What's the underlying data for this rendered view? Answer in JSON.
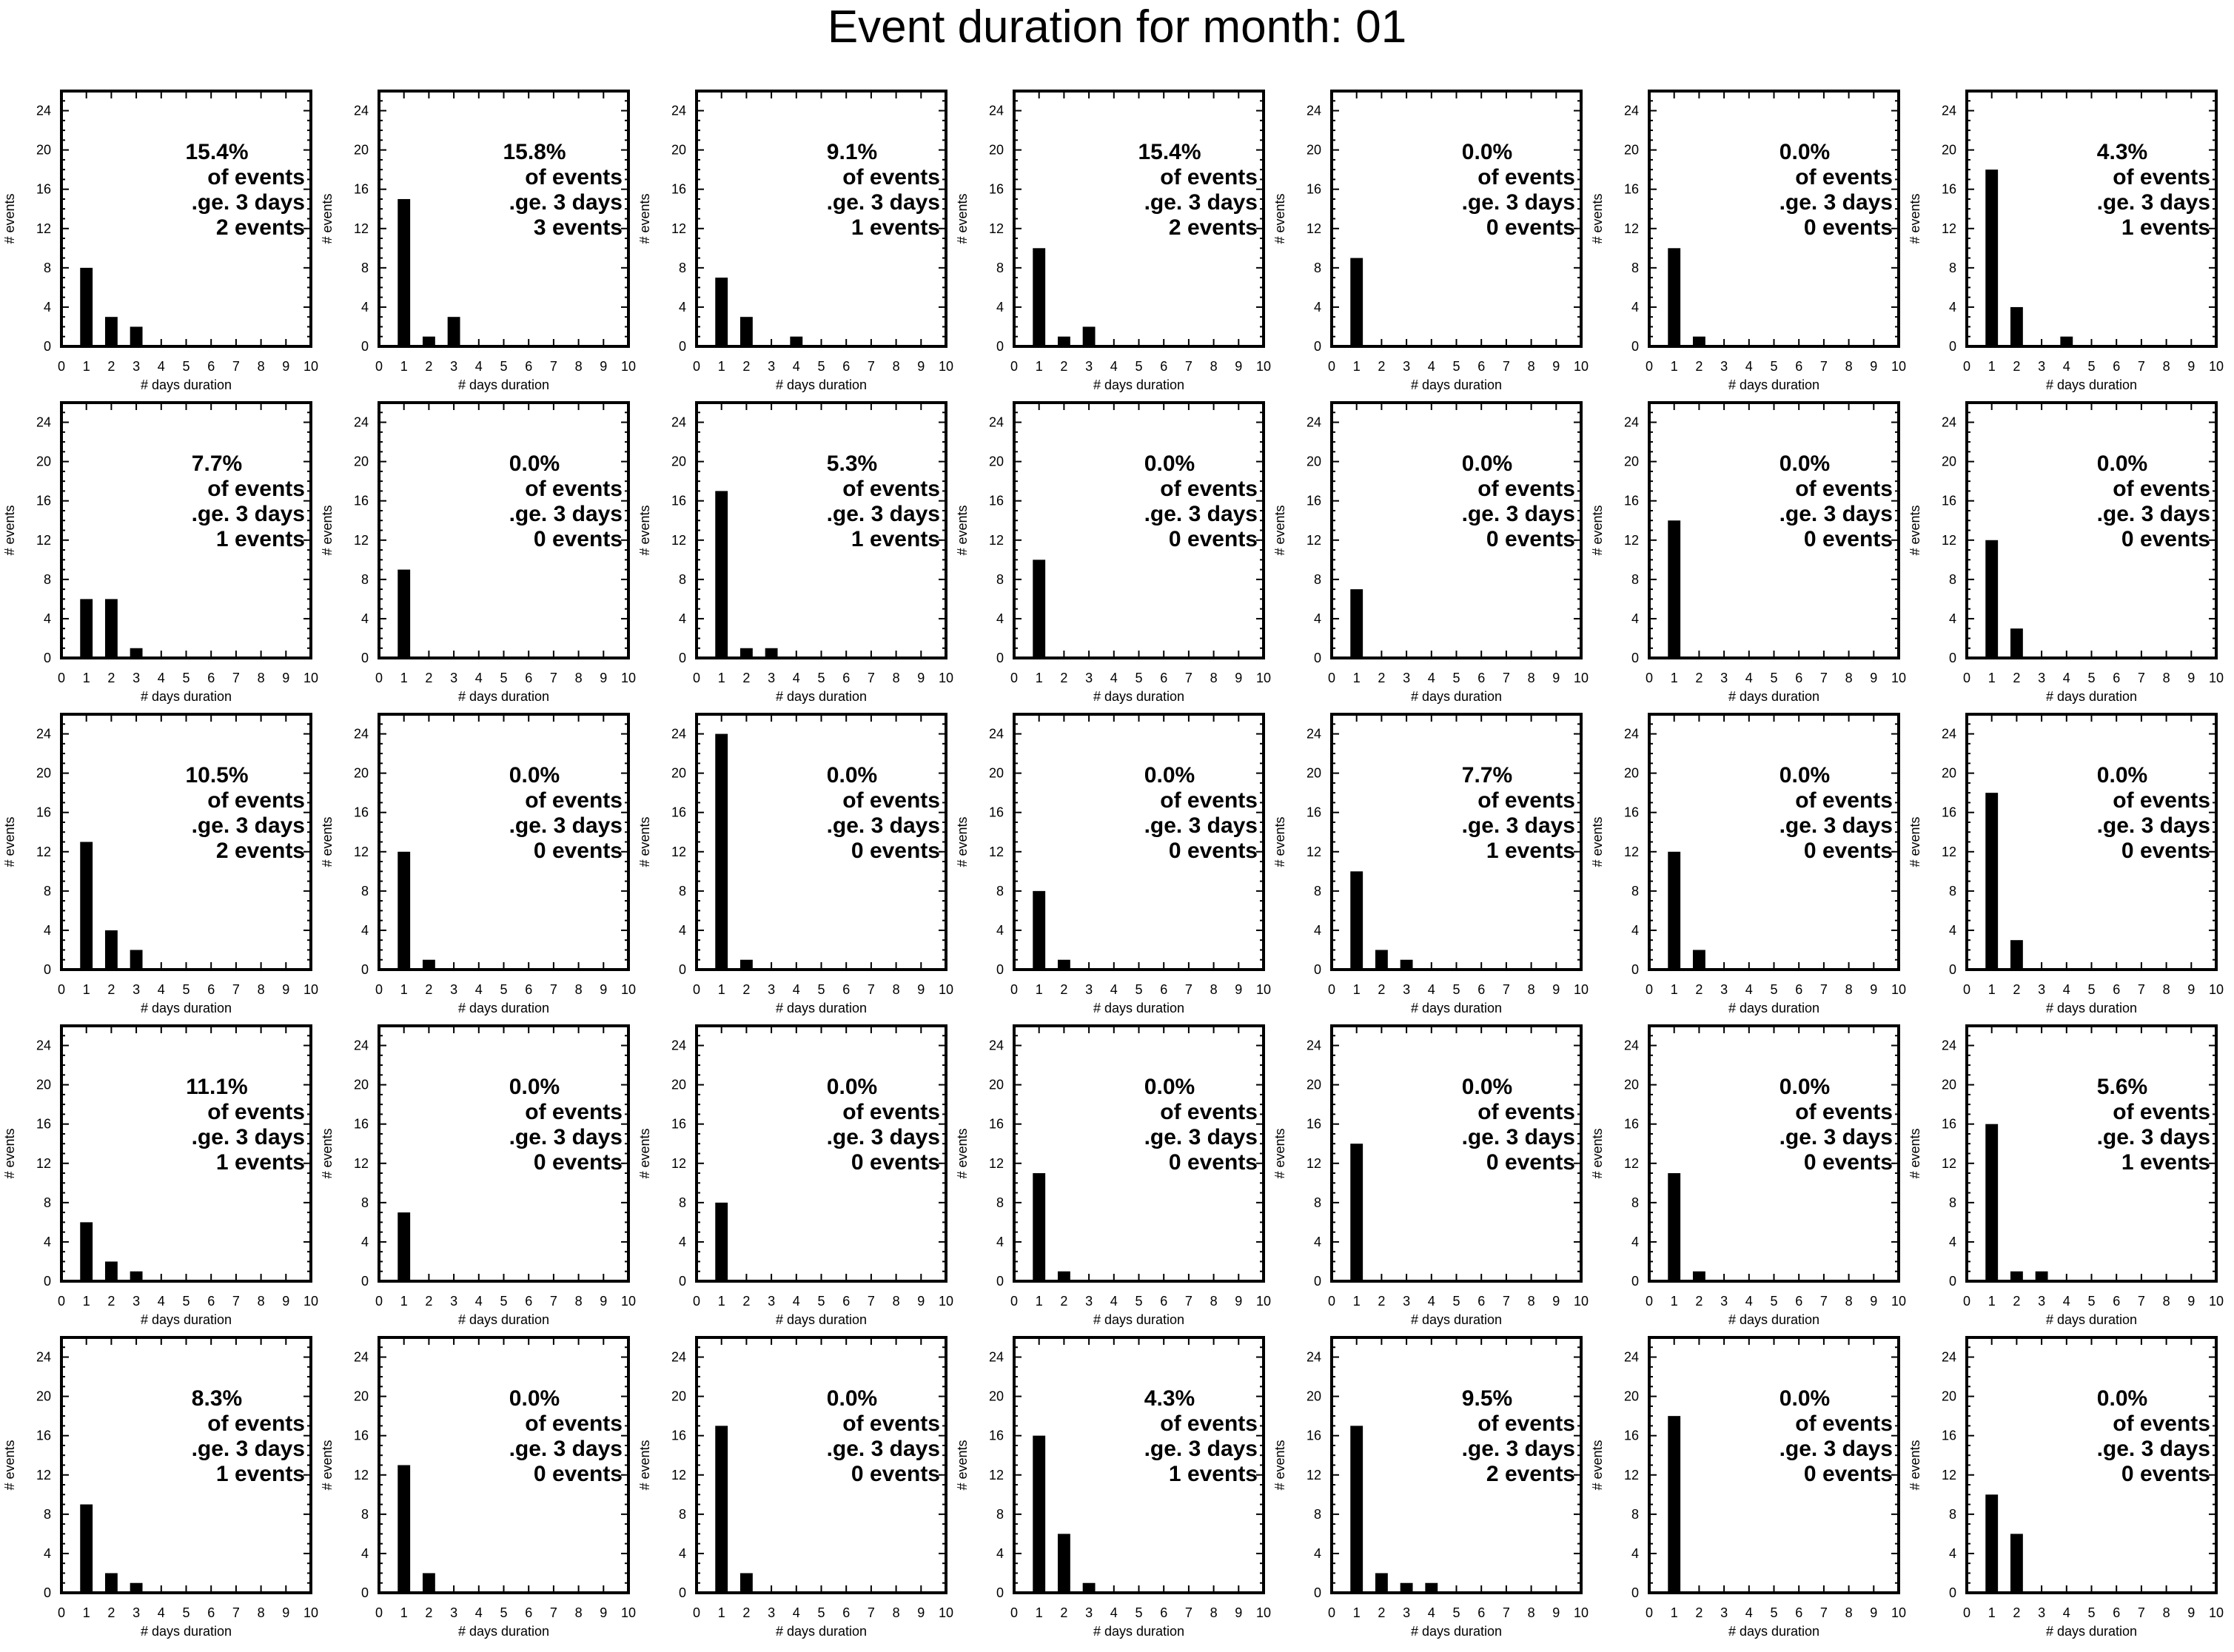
{
  "title": "Event duration for month: 01",
  "chart_data": {
    "type": "bar",
    "layout": "grid of 5 rows x 7 columns of small bar charts",
    "xlabel": "# days duration",
    "ylabel": "# events",
    "xlim": [
      0,
      10
    ],
    "ylim": [
      0,
      26
    ],
    "x_ticks": [
      0,
      1,
      2,
      3,
      4,
      5,
      6,
      7,
      8,
      9,
      10
    ],
    "y_ticks": [
      0,
      4,
      8,
      12,
      16,
      20,
      24
    ],
    "annotation_line2": "of events",
    "annotation_line3": ".ge. 3 days",
    "bar_color": "#000000",
    "panels": [
      {
        "values": [
          8,
          3,
          2
        ],
        "percent": "15.4%",
        "events": "2 events"
      },
      {
        "values": [
          15,
          1,
          3
        ],
        "percent": "15.8%",
        "events": "3 events"
      },
      {
        "values": [
          7,
          3,
          0,
          1
        ],
        "percent": "9.1%",
        "events": "1 events"
      },
      {
        "values": [
          10,
          1,
          2
        ],
        "percent": "15.4%",
        "events": "2 events"
      },
      {
        "values": [
          9
        ],
        "percent": "0.0%",
        "events": "0 events"
      },
      {
        "values": [
          10,
          1
        ],
        "percent": "0.0%",
        "events": "0 events"
      },
      {
        "values": [
          18,
          4,
          0,
          1
        ],
        "percent": "4.3%",
        "events": "1 events"
      },
      {
        "values": [
          6,
          6,
          1
        ],
        "percent": "7.7%",
        "events": "1 events"
      },
      {
        "values": [
          9
        ],
        "percent": "0.0%",
        "events": "0 events"
      },
      {
        "values": [
          17,
          1,
          1
        ],
        "percent": "5.3%",
        "events": "1 events"
      },
      {
        "values": [
          10
        ],
        "percent": "0.0%",
        "events": "0 events"
      },
      {
        "values": [
          7
        ],
        "percent": "0.0%",
        "events": "0 events"
      },
      {
        "values": [
          14
        ],
        "percent": "0.0%",
        "events": "0 events"
      },
      {
        "values": [
          12,
          3
        ],
        "percent": "0.0%",
        "events": "0 events"
      },
      {
        "values": [
          13,
          4,
          2
        ],
        "percent": "10.5%",
        "events": "2 events"
      },
      {
        "values": [
          12,
          1
        ],
        "percent": "0.0%",
        "events": "0 events"
      },
      {
        "values": [
          24,
          1
        ],
        "percent": "0.0%",
        "events": "0 events"
      },
      {
        "values": [
          8,
          1
        ],
        "percent": "0.0%",
        "events": "0 events"
      },
      {
        "values": [
          10,
          2,
          1
        ],
        "percent": "7.7%",
        "events": "1 events"
      },
      {
        "values": [
          12,
          2
        ],
        "percent": "0.0%",
        "events": "0 events"
      },
      {
        "values": [
          18,
          3
        ],
        "percent": "0.0%",
        "events": "0 events"
      },
      {
        "values": [
          6,
          2,
          1
        ],
        "percent": "11.1%",
        "events": "1 events"
      },
      {
        "values": [
          7
        ],
        "percent": "0.0%",
        "events": "0 events"
      },
      {
        "values": [
          8
        ],
        "percent": "0.0%",
        "events": "0 events"
      },
      {
        "values": [
          11,
          1
        ],
        "percent": "0.0%",
        "events": "0 events"
      },
      {
        "values": [
          14
        ],
        "percent": "0.0%",
        "events": "0 events"
      },
      {
        "values": [
          11,
          1
        ],
        "percent": "0.0%",
        "events": "0 events"
      },
      {
        "values": [
          16,
          1,
          1
        ],
        "percent": "5.6%",
        "events": "1 events"
      },
      {
        "values": [
          9,
          2,
          1
        ],
        "percent": "8.3%",
        "events": "1 events"
      },
      {
        "values": [
          13,
          2
        ],
        "percent": "0.0%",
        "events": "0 events"
      },
      {
        "values": [
          17,
          2
        ],
        "percent": "0.0%",
        "events": "0 events"
      },
      {
        "values": [
          16,
          6,
          1
        ],
        "percent": "4.3%",
        "events": "1 events"
      },
      {
        "values": [
          17,
          2,
          1,
          1
        ],
        "percent": "9.5%",
        "events": "2 events"
      },
      {
        "values": [
          18
        ],
        "percent": "0.0%",
        "events": "0 events"
      },
      {
        "values": [
          10,
          6
        ],
        "percent": "0.0%",
        "events": "0 events"
      }
    ]
  }
}
